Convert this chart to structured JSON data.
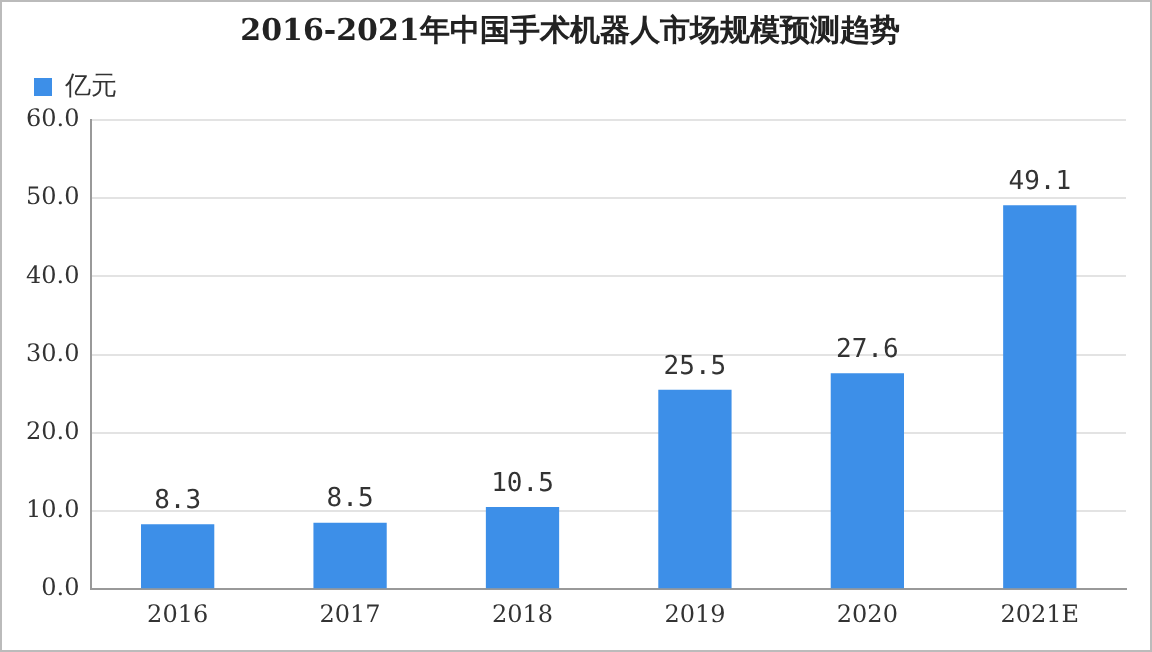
{
  "chart_data": {
    "type": "bar",
    "title": "2016-2021年中国手术机器人市场规模预测趋势",
    "categories": [
      "2016",
      "2017",
      "2018",
      "2019",
      "2020",
      "2021E"
    ],
    "series": [
      {
        "name": "亿元",
        "color": "#3d8fe8",
        "values": [
          8.3,
          8.5,
          10.5,
          25.5,
          27.6,
          49.1
        ]
      }
    ],
    "ylim": [
      0,
      60
    ],
    "yticks": [
      {
        "value": 0,
        "label": "0.0"
      },
      {
        "value": 10,
        "label": "10.0"
      },
      {
        "value": 20,
        "label": "20.0"
      },
      {
        "value": 30,
        "label": "30.0"
      },
      {
        "value": 40,
        "label": "40.0"
      },
      {
        "value": 50,
        "label": "50.0"
      },
      {
        "value": 60,
        "label": "60.0"
      }
    ],
    "grid": "y",
    "legend": "top left",
    "data_labels": true
  }
}
